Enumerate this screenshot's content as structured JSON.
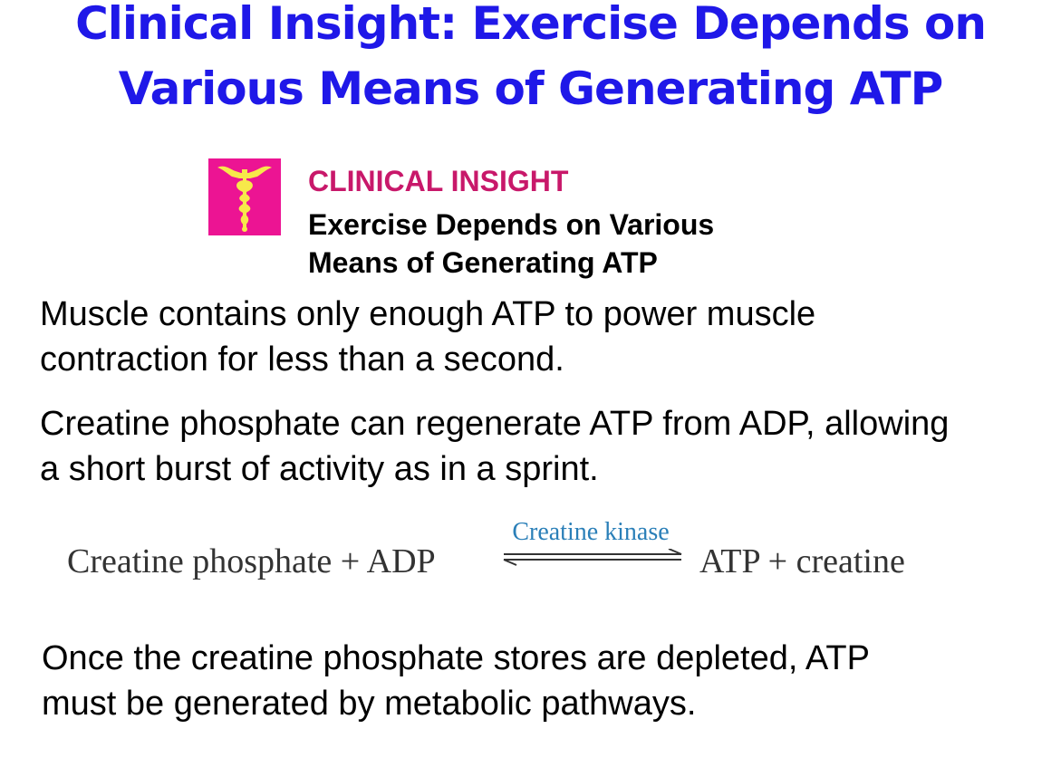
{
  "title": {
    "line1": "Clinical Insight: Exercise Depends on",
    "line2": "Various Means of Generating ATP"
  },
  "insight": {
    "icon": "caduceus-icon",
    "kicker": "CLINICAL INSIGHT",
    "heading_line1": "Exercise Depends on Various",
    "heading_line2": "Means of Generating ATP"
  },
  "paragraphs": {
    "p1_line1": "Muscle contains only enough ATP to power muscle",
    "p1_line2": "contraction for less than a second.",
    "p2_line1": "Creatine phosphate can regenerate ATP from ADP, allowing",
    "p2_line2": "a short burst of activity as in a sprint.",
    "p3_line1": "Once the creatine phosphate stores are depleted, ATP",
    "p3_line2": "must be generated by metabolic pathways."
  },
  "equation": {
    "left": "Creatine phosphate + ADP",
    "enzyme": "Creatine kinase",
    "right": "ATP + creatine",
    "arrow": "reversible-arrow-icon"
  },
  "colors": {
    "title": "#1f18e8",
    "kicker": "#c8186a",
    "icon_background": "#ec1493",
    "icon_figure": "#f7e94a",
    "enzyme": "#2a7fb8"
  }
}
